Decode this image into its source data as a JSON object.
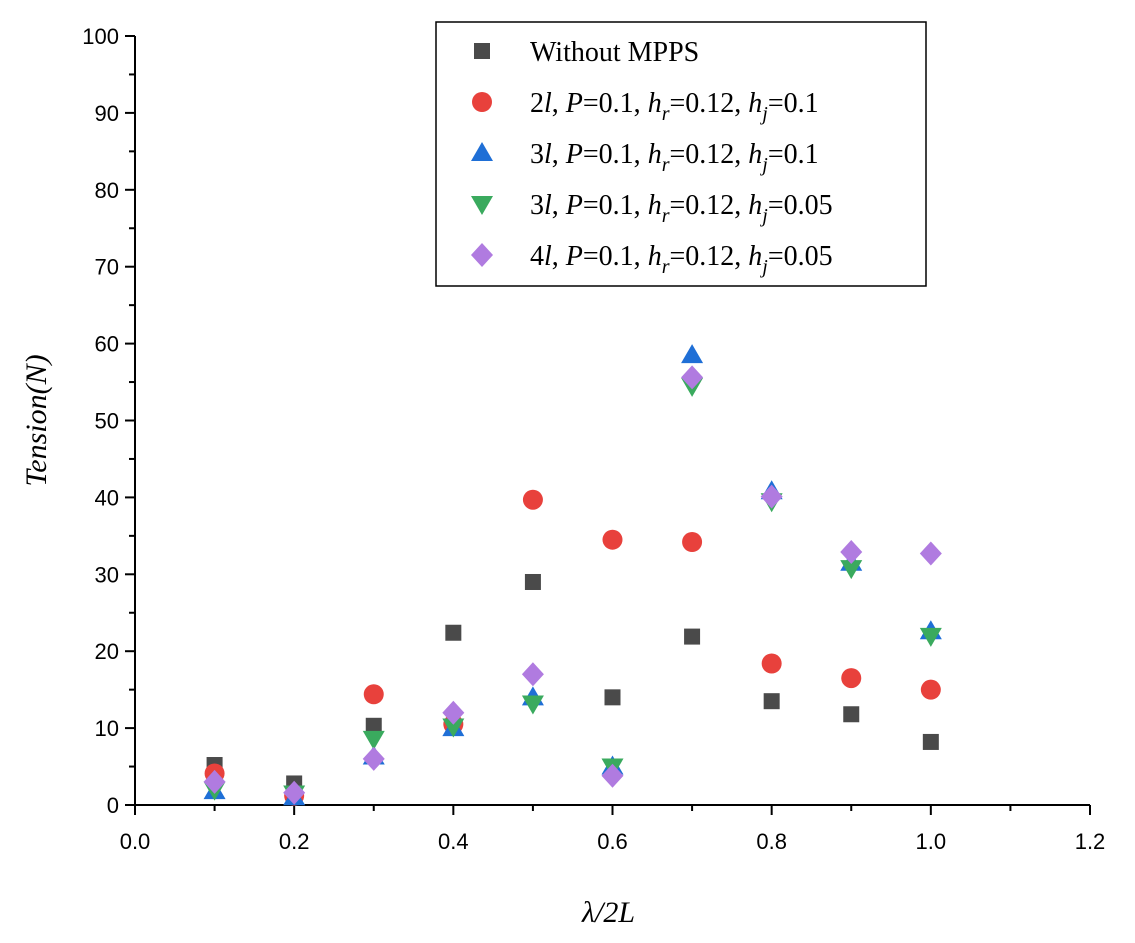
{
  "chart_data": {
    "type": "scatter",
    "title": "",
    "xlabel": "λ/2L",
    "ylabel": "Tension(N)",
    "xlim": [
      0.0,
      1.2
    ],
    "ylim": [
      0,
      100
    ],
    "x_ticks": [
      "0.0",
      "0.2",
      "0.4",
      "0.6",
      "0.8",
      "1.0",
      "1.2"
    ],
    "y_ticks": [
      "0",
      "10",
      "20",
      "30",
      "40",
      "50",
      "60",
      "70",
      "80",
      "90",
      "100"
    ],
    "x": [
      0.1,
      0.2,
      0.3,
      0.4,
      0.5,
      0.6,
      0.7,
      0.8,
      0.9,
      1.0
    ],
    "legend_position": "top-right",
    "series": [
      {
        "name": "Without MPPS",
        "marker": "square",
        "color": "#4a4a4a",
        "legend": [
          {
            "t": "Without MPPS",
            "i": false
          }
        ],
        "values": [
          5.2,
          2.8,
          10.3,
          22.4,
          29.0,
          14.0,
          21.9,
          13.5,
          11.8,
          8.2
        ]
      },
      {
        "name": "2l, P=0.1, hr=0.12, hj=0.1",
        "marker": "circle",
        "color": "#e8413c",
        "legend": [
          {
            "t": "2",
            "i": false
          },
          {
            "t": "l",
            "i": true
          },
          {
            "t": ", ",
            "i": false
          },
          {
            "t": "P",
            "i": true
          },
          {
            "t": "=0.1, ",
            "i": false
          },
          {
            "t": "h",
            "i": true
          },
          {
            "t": "r",
            "i": true,
            "sub": true
          },
          {
            "t": "=0.12, ",
            "i": false
          },
          {
            "t": "h",
            "i": true
          },
          {
            "t": "j",
            "i": true,
            "sub": true
          },
          {
            "t": "=0.1",
            "i": false
          }
        ],
        "values": [
          4.1,
          1.2,
          14.4,
          10.5,
          39.7,
          34.5,
          34.2,
          18.4,
          16.5,
          15.0
        ]
      },
      {
        "name": "3l, P=0.1, hr=0.12, hj=0.1",
        "marker": "triangle-up",
        "color": "#1f6fd6",
        "legend": [
          {
            "t": "3",
            "i": false
          },
          {
            "t": "l",
            "i": true
          },
          {
            "t": ", ",
            "i": false
          },
          {
            "t": "P",
            "i": true
          },
          {
            "t": "=0.1, ",
            "i": false
          },
          {
            "t": "h",
            "i": true
          },
          {
            "t": "r",
            "i": true,
            "sub": true
          },
          {
            "t": "=0.12, ",
            "i": false
          },
          {
            "t": "h",
            "i": true
          },
          {
            "t": "j",
            "i": true,
            "sub": true
          },
          {
            "t": "=0.1",
            "i": false
          }
        ],
        "values": [
          1.8,
          1.0,
          6.3,
          10.0,
          14.0,
          5.0,
          58.5,
          40.8,
          31.5,
          22.6
        ]
      },
      {
        "name": "3l, P=0.1, hr=0.12, hj=0.05",
        "marker": "triangle-down",
        "color": "#3aaa5e",
        "legend": [
          {
            "t": "3",
            "i": false
          },
          {
            "t": "l",
            "i": true
          },
          {
            "t": ", ",
            "i": false
          },
          {
            "t": "P",
            "i": true
          },
          {
            "t": "=0.1, ",
            "i": false
          },
          {
            "t": "h",
            "i": true
          },
          {
            "t": "r",
            "i": true,
            "sub": true
          },
          {
            "t": "=0.12, ",
            "i": false
          },
          {
            "t": "h",
            "i": true
          },
          {
            "t": "j",
            "i": true,
            "sub": true
          },
          {
            "t": "=0.05",
            "i": false
          }
        ],
        "values": [
          2.0,
          1.5,
          8.6,
          10.2,
          13.2,
          5.0,
          54.5,
          39.5,
          30.8,
          22.0
        ]
      },
      {
        "name": "4l, P=0.1, hr=0.12, hj=0.05",
        "marker": "diamond",
        "color": "#b07be0",
        "legend": [
          {
            "t": "4",
            "i": false
          },
          {
            "t": "l",
            "i": true
          },
          {
            "t": ", ",
            "i": false
          },
          {
            "t": "P",
            "i": true
          },
          {
            "t": "=0.1, ",
            "i": false
          },
          {
            "t": "h",
            "i": true
          },
          {
            "t": "r",
            "i": true,
            "sub": true
          },
          {
            "t": "=0.12, ",
            "i": false
          },
          {
            "t": "h",
            "i": true
          },
          {
            "t": "j",
            "i": true,
            "sub": true
          },
          {
            "t": "=0.05",
            "i": false
          }
        ],
        "values": [
          3.0,
          1.6,
          6.0,
          12.0,
          17.0,
          3.8,
          55.6,
          40.1,
          32.9,
          32.7
        ]
      }
    ]
  }
}
